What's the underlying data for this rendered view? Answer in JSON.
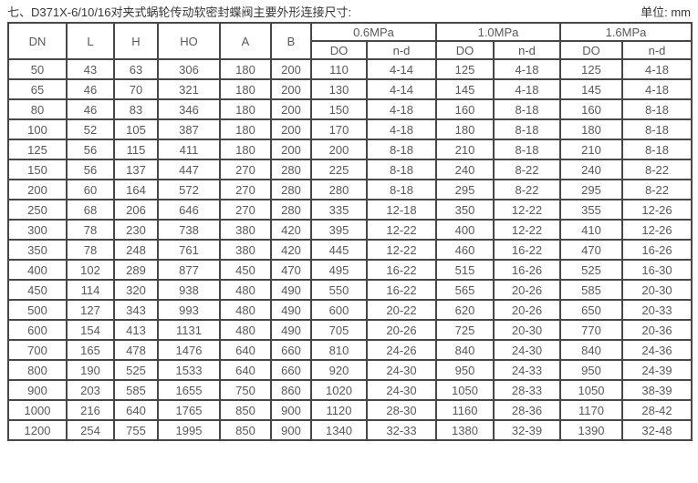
{
  "page": {
    "title": "七、D371X-6/10/16对夹式蜗轮传动软密封蝶阀主要外形连接尺寸:",
    "unit_label": "单位: mm"
  },
  "colors": {
    "border": "#474747",
    "text": "#595959",
    "title_text": "#363636",
    "background": "#ffffff"
  },
  "table": {
    "columns": [
      "DN",
      "L",
      "H",
      "HO",
      "A",
      "B"
    ],
    "pressure_groups": [
      {
        "label": "0.6MPa",
        "subcolumns": [
          "DO",
          "n-d"
        ]
      },
      {
        "label": "1.0MPa",
        "subcolumns": [
          "DO",
          "n-d"
        ]
      },
      {
        "label": "1.6MPa",
        "subcolumns": [
          "DO",
          "n-d"
        ]
      }
    ],
    "rows": [
      [
        "50",
        "43",
        "63",
        "306",
        "180",
        "200",
        "110",
        "4-14",
        "125",
        "4-18",
        "125",
        "4-18"
      ],
      [
        "65",
        "46",
        "70",
        "321",
        "180",
        "200",
        "130",
        "4-14",
        "145",
        "4-18",
        "145",
        "4-18"
      ],
      [
        "80",
        "46",
        "83",
        "346",
        "180",
        "200",
        "150",
        "4-18",
        "160",
        "8-18",
        "160",
        "8-18"
      ],
      [
        "100",
        "52",
        "105",
        "387",
        "180",
        "200",
        "170",
        "4-18",
        "180",
        "8-18",
        "180",
        "8-18"
      ],
      [
        "125",
        "56",
        "115",
        "411",
        "180",
        "200",
        "200",
        "8-18",
        "210",
        "8-18",
        "210",
        "8-18"
      ],
      [
        "150",
        "56",
        "137",
        "447",
        "270",
        "280",
        "225",
        "8-18",
        "240",
        "8-22",
        "240",
        "8-22"
      ],
      [
        "200",
        "60",
        "164",
        "572",
        "270",
        "280",
        "280",
        "8-18",
        "295",
        "8-22",
        "295",
        "8-22"
      ],
      [
        "250",
        "68",
        "206",
        "646",
        "270",
        "280",
        "335",
        "12-18",
        "350",
        "12-22",
        "355",
        "12-26"
      ],
      [
        "300",
        "78",
        "230",
        "738",
        "380",
        "420",
        "395",
        "12-22",
        "400",
        "12-22",
        "410",
        "12-26"
      ],
      [
        "350",
        "78",
        "248",
        "761",
        "380",
        "420",
        "445",
        "12-22",
        "460",
        "16-22",
        "470",
        "16-26"
      ],
      [
        "400",
        "102",
        "289",
        "877",
        "450",
        "470",
        "495",
        "16-22",
        "515",
        "16-26",
        "525",
        "16-30"
      ],
      [
        "450",
        "114",
        "320",
        "938",
        "480",
        "490",
        "550",
        "16-22",
        "565",
        "20-26",
        "585",
        "20-30"
      ],
      [
        "500",
        "127",
        "343",
        "993",
        "480",
        "490",
        "600",
        "20-22",
        "620",
        "20-26",
        "650",
        "20-33"
      ],
      [
        "600",
        "154",
        "413",
        "1131",
        "480",
        "490",
        "705",
        "20-26",
        "725",
        "20-30",
        "770",
        "20-36"
      ],
      [
        "700",
        "165",
        "478",
        "1476",
        "640",
        "660",
        "810",
        "24-26",
        "840",
        "24-30",
        "840",
        "24-36"
      ],
      [
        "800",
        "190",
        "525",
        "1533",
        "640",
        "660",
        "920",
        "24-30",
        "950",
        "24-33",
        "950",
        "24-39"
      ],
      [
        "900",
        "203",
        "585",
        "1655",
        "750",
        "860",
        "1020",
        "24-30",
        "1050",
        "28-33",
        "1050",
        "38-39"
      ],
      [
        "1000",
        "216",
        "640",
        "1765",
        "850",
        "900",
        "1120",
        "28-30",
        "1160",
        "28-36",
        "1170",
        "28-42"
      ],
      [
        "1200",
        "254",
        "755",
        "1995",
        "850",
        "900",
        "1340",
        "32-33",
        "1380",
        "32-39",
        "1390",
        "32-48"
      ]
    ]
  }
}
